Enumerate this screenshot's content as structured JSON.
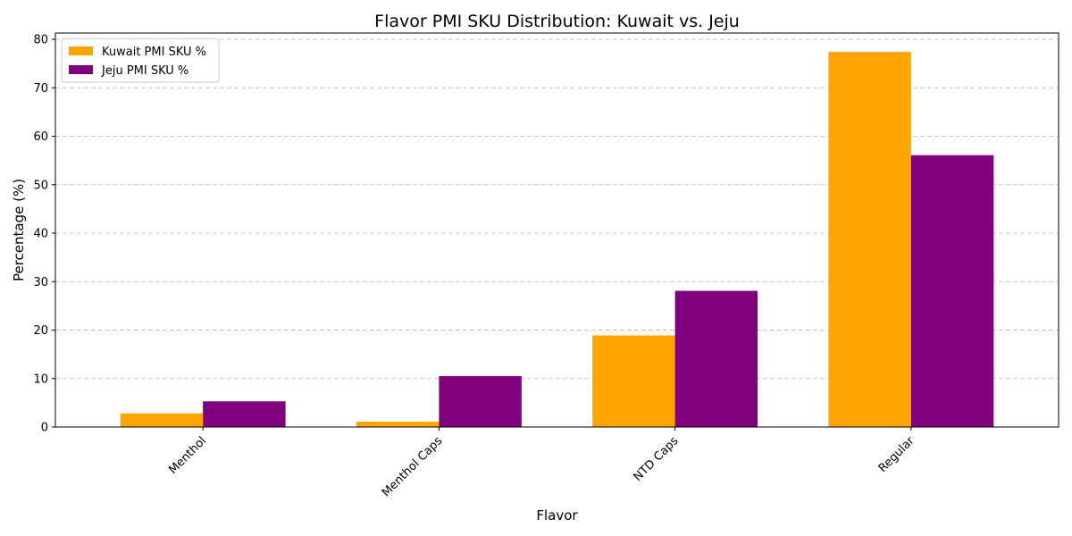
{
  "chart_data": {
    "type": "bar",
    "title": "Flavor PMI SKU Distribution: Kuwait vs. Jeju",
    "xlabel": "Flavor",
    "ylabel": "Percentage (%)",
    "categories": [
      "Menthol",
      "Menthol Caps",
      "NTD Caps",
      "Regular"
    ],
    "series": [
      {
        "name": "Kuwait PMI SKU %",
        "color": "#FFA500",
        "values": [
          2.8,
          1.1,
          18.9,
          77.4
        ]
      },
      {
        "name": "Jeju PMI SKU %",
        "color": "#800080",
        "values": [
          5.3,
          10.5,
          28.1,
          56.1
        ]
      }
    ],
    "ylim": [
      0,
      81.3
    ],
    "yticks": [
      0,
      10,
      20,
      30,
      40,
      50,
      60,
      70,
      80
    ],
    "grid": "y-dashed",
    "legend_position": "top-left",
    "xtick_rotation": 45
  }
}
